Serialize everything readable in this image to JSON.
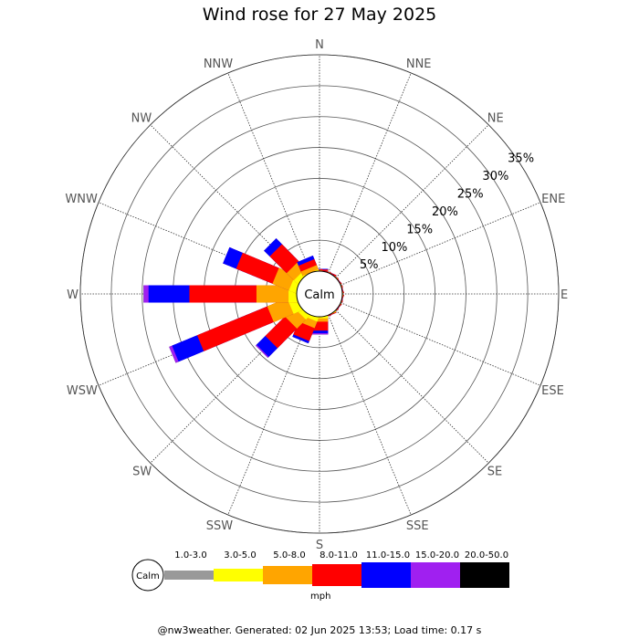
{
  "chart_data": {
    "type": "wind-rose",
    "title": "Wind rose for 27 May 2025",
    "center_label": "Calm",
    "directions": [
      "N",
      "NNE",
      "NE",
      "ENE",
      "E",
      "ESE",
      "SE",
      "SSE",
      "S",
      "SSW",
      "SW",
      "WSW",
      "W",
      "WNW",
      "NW",
      "NNW"
    ],
    "radial_ticks": [
      "5%",
      "10%",
      "15%",
      "20%",
      "25%",
      "30%",
      "35%"
    ],
    "radial_max_percent": 35,
    "speed_bins": [
      {
        "label": "1.0-3.0",
        "color": "#999999"
      },
      {
        "label": "3.0-5.0",
        "color": "#ffff00"
      },
      {
        "label": "5.0-8.0",
        "color": "#ffa500"
      },
      {
        "label": "8.0-11.0",
        "color": "#ff0000"
      },
      {
        "label": "11.0-15.0",
        "color": "#0000ff"
      },
      {
        "label": "15.0-20.0",
        "color": "#a020f0"
      },
      {
        "label": "20.0-50.0",
        "color": "#000000"
      }
    ],
    "units": "mph",
    "cumulative_percent_by_direction": {
      "N": [
        0,
        0.1,
        0.3,
        0.5,
        0.6,
        0.6,
        0.6
      ],
      "NNE": [
        0,
        0.1,
        0.2,
        0.4,
        0.4,
        0.4,
        0.4
      ],
      "NE": [
        0,
        0.1,
        0.2,
        0.3,
        0.3,
        0.3,
        0.3
      ],
      "ENE": [
        0,
        0.1,
        0.2,
        0.3,
        0.3,
        0.3,
        0.3
      ],
      "E": [
        0,
        0.1,
        0.2,
        0.3,
        0.3,
        0.3,
        0.3
      ],
      "ESE": [
        0,
        0.1,
        0.2,
        0.3,
        0.3,
        0.3,
        0.3
      ],
      "SE": [
        0,
        0.1,
        0.2,
        0.3,
        0.3,
        0.3,
        0.3
      ],
      "SSE": [
        0,
        0.2,
        0.3,
        0.4,
        0.4,
        0.4,
        0.4
      ],
      "S": [
        0,
        0.5,
        1.0,
        2.4,
        2.8,
        3.0,
        3.0
      ],
      "SSW": [
        0,
        0.8,
        1.9,
        4.1,
        4.5,
        4.5,
        4.5
      ],
      "SW": [
        0,
        1.0,
        3.0,
        7.4,
        9.4,
        9.6,
        9.6
      ],
      "WSW": [
        0,
        1.6,
        5.0,
        17.2,
        21.6,
        22.1,
        22.1
      ],
      "W": [
        0,
        1.5,
        6.6,
        17.4,
        24.0,
        24.8,
        24.8
      ],
      "WNW": [
        0,
        1.3,
        4.1,
        10.4,
        12.7,
        12.7,
        12.7
      ],
      "NW": [
        0,
        1.0,
        2.6,
        6.4,
        7.7,
        7.7,
        7.7
      ],
      "NNW": [
        0,
        0.3,
        1.0,
        2.0,
        2.6,
        2.6,
        2.6
      ]
    },
    "grid": true
  },
  "footer": "@nw3weather. Generated: 02 Jun 2025 13:53; Load time: 0.17 s"
}
